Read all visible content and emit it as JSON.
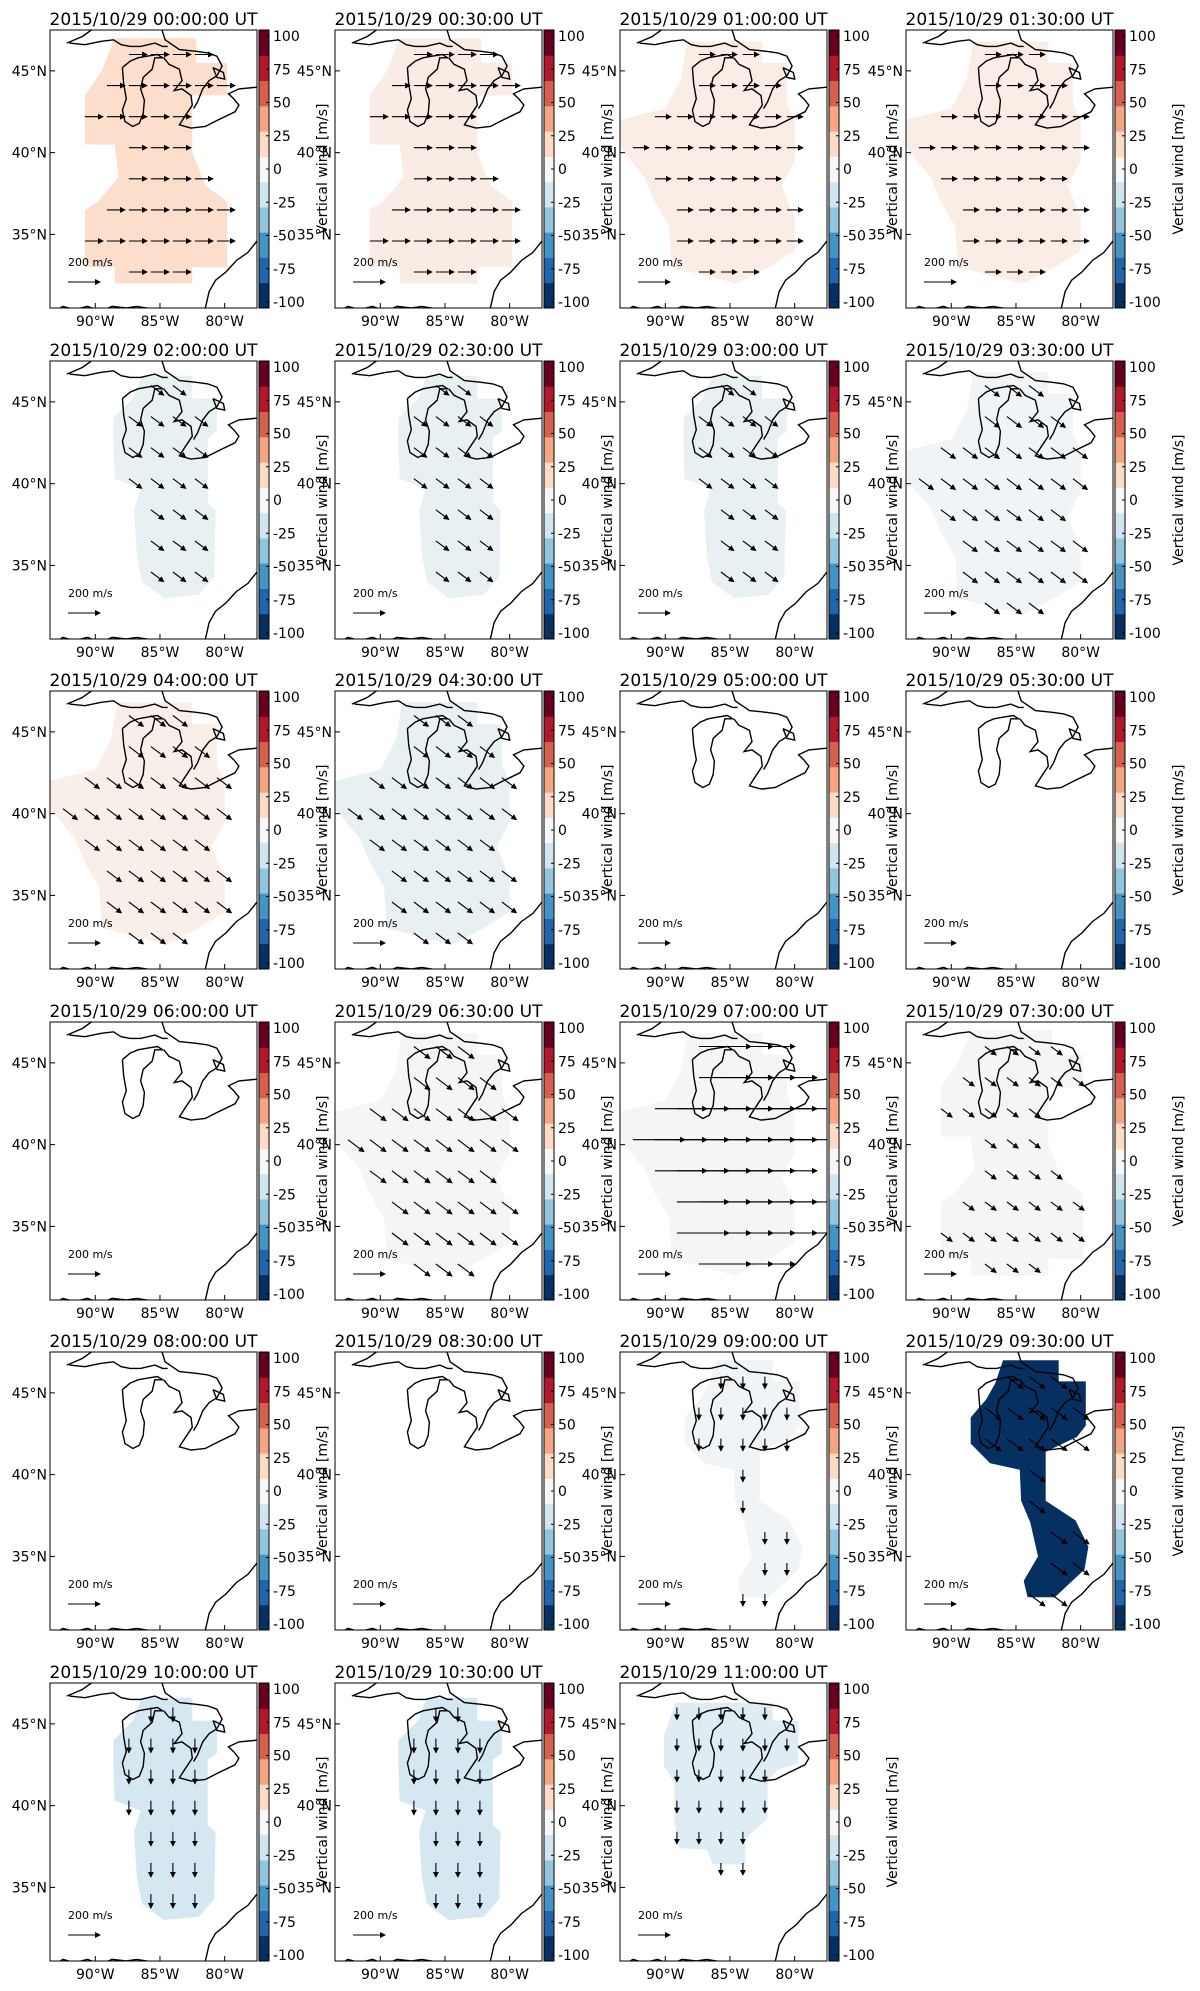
{
  "chart_data": {
    "type": "heatmap",
    "layout": "small-multiples",
    "rows": 6,
    "cols": 4,
    "colorbar": {
      "label": "Vertical wind [m/s]",
      "min": -100,
      "max": 100,
      "ticks": [
        100,
        75,
        50,
        25,
        0,
        -25,
        -50,
        -75,
        -100
      ],
      "colormap": "RdBu_r",
      "colors": [
        "#053061",
        "#2166ac",
        "#4393c3",
        "#92c5de",
        "#d1e5f0",
        "#f7f7f7",
        "#fddbc7",
        "#f4a582",
        "#d6604d",
        "#b2182b",
        "#67001f"
      ]
    },
    "map": {
      "lon_range": [
        -93.5,
        -77.5
      ],
      "lat_range": [
        30.5,
        47.5
      ],
      "x_ticks": [
        "90°W",
        "85°W",
        "80°W"
      ],
      "y_ticks": [
        "45°N",
        "40°N",
        "35°N"
      ],
      "x_tick_values": [
        -90,
        -85,
        -80
      ],
      "y_tick_values": [
        45,
        40,
        35
      ]
    },
    "reference_arrow": {
      "speed": 200,
      "label": "200 m/s"
    },
    "panels": [
      {
        "time": "2015/10/29 00:00:00 UT",
        "vertical_wind": 18,
        "coverage": "ne",
        "wind": "e",
        "speed": 0.9
      },
      {
        "time": "2015/10/29 00:30:00 UT",
        "vertical_wind": 8,
        "coverage": "ne",
        "wind": "e",
        "speed": 0.9
      },
      {
        "time": "2015/10/29 01:00:00 UT",
        "vertical_wind": 7,
        "coverage": "w",
        "wind": "e",
        "speed": 0.8
      },
      {
        "time": "2015/10/29 01:30:00 UT",
        "vertical_wind": 7,
        "coverage": "w",
        "wind": "e",
        "speed": 0.8
      },
      {
        "time": "2015/10/29 02:00:00 UT",
        "vertical_wind": -8,
        "coverage": "c",
        "wind": "se",
        "speed": 0.8
      },
      {
        "time": "2015/10/29 02:30:00 UT",
        "vertical_wind": -8,
        "coverage": "c",
        "wind": "se",
        "speed": 0.8
      },
      {
        "time": "2015/10/29 03:00:00 UT",
        "vertical_wind": -8,
        "coverage": "c",
        "wind": "se",
        "speed": 0.8
      },
      {
        "time": "2015/10/29 03:30:00 UT",
        "vertical_wind": -3,
        "coverage": "w",
        "wind": "se",
        "speed": 0.9
      },
      {
        "time": "2015/10/29 04:00:00 UT",
        "vertical_wind": 6,
        "coverage": "w",
        "wind": "se",
        "speed": 0.9
      },
      {
        "time": "2015/10/29 04:30:00 UT",
        "vertical_wind": -8,
        "coverage": "w",
        "wind": "se",
        "speed": 0.9
      },
      {
        "time": "2015/10/29 05:00:00 UT",
        "vertical_wind": null,
        "coverage": "none",
        "wind": "",
        "speed": 0
      },
      {
        "time": "2015/10/29 05:30:00 UT",
        "vertical_wind": null,
        "coverage": "none",
        "wind": "",
        "speed": 0
      },
      {
        "time": "2015/10/29 06:00:00 UT",
        "vertical_wind": null,
        "coverage": "none",
        "wind": "",
        "speed": 0
      },
      {
        "time": "2015/10/29 06:30:00 UT",
        "vertical_wind": -2,
        "coverage": "w",
        "wind": "se",
        "speed": 1.0
      },
      {
        "time": "2015/10/29 07:00:00 UT",
        "vertical_wind": -2,
        "coverage": "w",
        "wind": "e",
        "speed": 2.6
      },
      {
        "time": "2015/10/29 07:30:00 UT",
        "vertical_wind": -2,
        "coverage": "ne",
        "wind": "se",
        "speed": 0.7
      },
      {
        "time": "2015/10/29 08:00:00 UT",
        "vertical_wind": null,
        "coverage": "none",
        "wind": "",
        "speed": 0
      },
      {
        "time": "2015/10/29 08:30:00 UT",
        "vertical_wind": null,
        "coverage": "none",
        "wind": "",
        "speed": 0
      },
      {
        "time": "2015/10/29 09:00:00 UT",
        "vertical_wind": -3,
        "coverage": "e",
        "wind": "s",
        "speed": 0.6
      },
      {
        "time": "2015/10/29 09:30:00 UT",
        "vertical_wind": -100,
        "coverage": "e",
        "wind": "se",
        "speed": 1.0
      },
      {
        "time": "2015/10/29 10:00:00 UT",
        "vertical_wind": -18,
        "coverage": "c",
        "wind": "s",
        "speed": 0.7
      },
      {
        "time": "2015/10/29 10:30:00 UT",
        "vertical_wind": -18,
        "coverage": "c",
        "wind": "s",
        "speed": 0.7
      },
      {
        "time": "2015/10/29 11:00:00 UT",
        "vertical_wind": -12,
        "coverage": "n",
        "wind": "s",
        "speed": 0.6
      }
    ]
  }
}
